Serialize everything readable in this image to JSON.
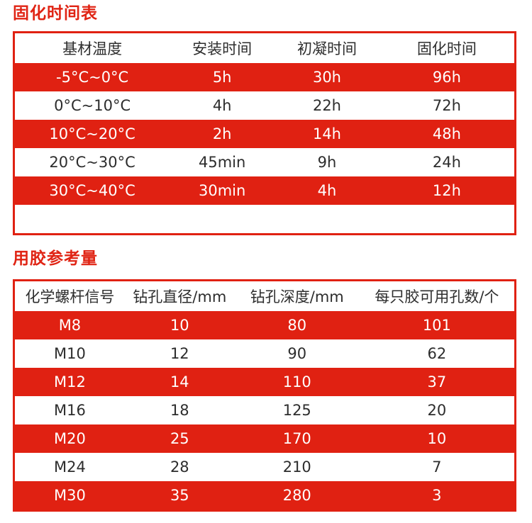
{
  "colors": {
    "accent_red": "#e02112",
    "title_red": "#e02414",
    "text_dark": "#2d2d2d",
    "row_text_light": "#ffffff",
    "background": "#ffffff"
  },
  "curing_table": {
    "title": "固化时间表",
    "columns": [
      "基材温度",
      "安装时间",
      "初凝时间",
      "固化时间"
    ],
    "rows": [
      {
        "cells": [
          "-5°C~0°C",
          "5h",
          "30h",
          "96h"
        ],
        "highlight": true
      },
      {
        "cells": [
          "0°C~10°C",
          "4h",
          "22h",
          "72h"
        ],
        "highlight": false
      },
      {
        "cells": [
          "10°C~20°C",
          "2h",
          "14h",
          "48h"
        ],
        "highlight": true
      },
      {
        "cells": [
          "20°C~30°C",
          "45min",
          "9h",
          "24h"
        ],
        "highlight": false
      },
      {
        "cells": [
          "30°C~40°C",
          "30min",
          "4h",
          "12h"
        ],
        "highlight": true
      }
    ]
  },
  "glue_table": {
    "title": "用胶参考量",
    "columns": [
      "化学螺杆信号",
      "钻孔直径/mm",
      "钻孔深度/mm",
      "每只胶可用孔数/个"
    ],
    "rows": [
      {
        "cells": [
          "M8",
          "10",
          "80",
          "101"
        ],
        "highlight": true
      },
      {
        "cells": [
          "M10",
          "12",
          "90",
          "62"
        ],
        "highlight": false
      },
      {
        "cells": [
          "M12",
          "14",
          "110",
          "37"
        ],
        "highlight": true
      },
      {
        "cells": [
          "M16",
          "18",
          "125",
          "20"
        ],
        "highlight": false
      },
      {
        "cells": [
          "M20",
          "25",
          "170",
          "10"
        ],
        "highlight": true
      },
      {
        "cells": [
          "M24",
          "28",
          "210",
          "7"
        ],
        "highlight": false
      },
      {
        "cells": [
          "M30",
          "35",
          "280",
          "3"
        ],
        "highlight": true
      }
    ]
  }
}
